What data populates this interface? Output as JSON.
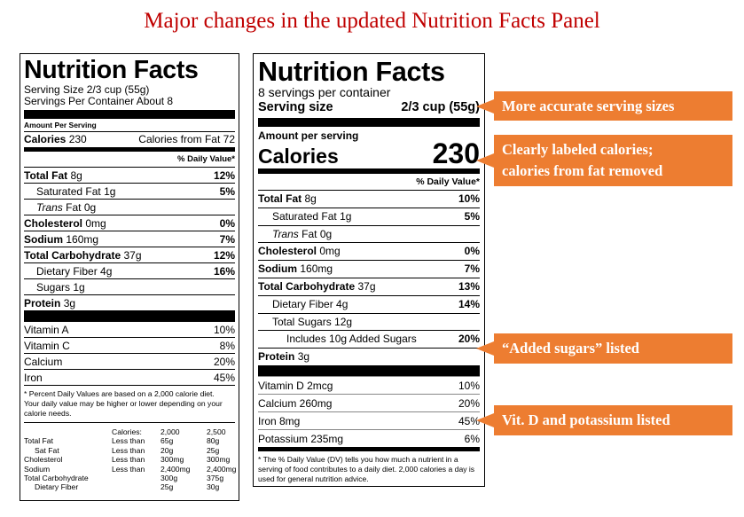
{
  "title": "Major changes in the updated Nutrition Facts Panel",
  "old_label": {
    "title": "Nutrition Facts",
    "serving_size": "Serving Size 2/3 cup (55g)",
    "servings_per_container": "Servings Per Container About 8",
    "amount_per_serving": "Amount Per Serving",
    "calories": {
      "label": "Calories",
      "value": "230"
    },
    "calories_from_fat": "Calories from Fat 72",
    "daily_value_header": "% Daily Value*",
    "nutrients": [
      {
        "name": "Total Fat",
        "amount": "8g",
        "dv": "12%",
        "bold": true
      },
      {
        "name": "Saturated Fat",
        "amount": "1g",
        "dv": "5%",
        "indent": 1
      },
      {
        "italic": "Trans",
        "name": "Fat",
        "amount": "0g",
        "indent": 1
      },
      {
        "name": "Cholesterol",
        "amount": "0mg",
        "dv": "0%",
        "bold": true
      },
      {
        "name": "Sodium",
        "amount": "160mg",
        "dv": "7%",
        "bold": true
      },
      {
        "name": "Total Carbohydrate",
        "amount": "37g",
        "dv": "12%",
        "bold": true
      },
      {
        "name": "Dietary Fiber",
        "amount": "4g",
        "dv": "16%",
        "indent": 1
      },
      {
        "name": "Sugars",
        "amount": "1g",
        "indent": 1
      },
      {
        "name": "Protein",
        "amount": "3g",
        "bold": true
      }
    ],
    "vitamins": [
      {
        "name": "Vitamin A",
        "dv": "10%"
      },
      {
        "name": "Vitamin C",
        "dv": "8%"
      },
      {
        "name": "Calcium",
        "dv": "20%"
      },
      {
        "name": "Iron",
        "dv": "45%"
      }
    ],
    "footnote": "* Percent Daily Values are based on a 2,000 calorie diet. Your daily value may be higher or lower depending on your calorie needs.",
    "footnote_table": {
      "header": {
        "label": "Calories:",
        "values": [
          "2,000",
          "2,500"
        ]
      },
      "rows": [
        {
          "name": "Total Fat",
          "qualifier": "Less than",
          "values": [
            "65g",
            "80g"
          ]
        },
        {
          "name": "Sat Fat",
          "qualifier": "Less than",
          "values": [
            "20g",
            "25g"
          ],
          "indent": true
        },
        {
          "name": "Cholesterol",
          "qualifier": "Less than",
          "values": [
            "300mg",
            "300mg"
          ]
        },
        {
          "name": "Sodium",
          "qualifier": "Less than",
          "values": [
            "2,400mg",
            "2,400mg"
          ]
        },
        {
          "name": "Total Carbohydrate",
          "values": [
            "300g",
            "375g"
          ]
        },
        {
          "name": "Dietary Fiber",
          "values": [
            "25g",
            "30g"
          ],
          "indent": true
        }
      ]
    }
  },
  "new_label": {
    "title": "Nutrition Facts",
    "servings_per_container": "8 servings per container",
    "serving_size": {
      "label": "Serving size",
      "value": "2/3 cup (55g)"
    },
    "amount_per_serving": "Amount per serving",
    "calories": {
      "label": "Calories",
      "value": "230"
    },
    "daily_value_header": "% Daily Value*",
    "nutrients": [
      {
        "name": "Total Fat",
        "amount": "8g",
        "dv": "10%",
        "bold": true
      },
      {
        "name": "Saturated Fat",
        "amount": "1g",
        "dv": "5%",
        "indent": 1
      },
      {
        "italic": "Trans",
        "name": "Fat",
        "amount": "0g",
        "indent": 1
      },
      {
        "name": "Cholesterol",
        "amount": "0mg",
        "dv": "0%",
        "bold": true
      },
      {
        "name": "Sodium",
        "amount": "160mg",
        "dv": "7%",
        "bold": true
      },
      {
        "name": "Total Carbohydrate",
        "amount": "37g",
        "dv": "13%",
        "bold": true
      },
      {
        "name": "Dietary Fiber",
        "amount": "4g",
        "dv": "14%",
        "indent": 1
      },
      {
        "name": "Total Sugars",
        "amount": "12g",
        "indent": 1
      },
      {
        "name": "Includes 10g Added Sugars",
        "dv": "20%",
        "indent": 2
      },
      {
        "name": "Protein",
        "amount": "3g",
        "bold": true
      }
    ],
    "vitamins": [
      {
        "name": "Vitamin D 2mcg",
        "dv": "10%"
      },
      {
        "name": "Calcium 260mg",
        "dv": "20%"
      },
      {
        "name": "Iron 8mg",
        "dv": "45%"
      },
      {
        "name": "Potassium 235mg",
        "dv": "6%"
      }
    ],
    "footnote": "* The % Daily Value (DV) tells you how much a nutrient in a serving of food contributes to a daily diet. 2,000 calories a day is used for general nutrition advice."
  },
  "callouts": [
    {
      "lines": [
        "More accurate serving sizes"
      ]
    },
    {
      "lines": [
        "Clearly labeled calories;",
        "calories from fat removed"
      ]
    },
    {
      "lines": [
        "“Added sugars” listed"
      ]
    },
    {
      "lines": [
        "Vit. D and potassium listed"
      ]
    }
  ]
}
